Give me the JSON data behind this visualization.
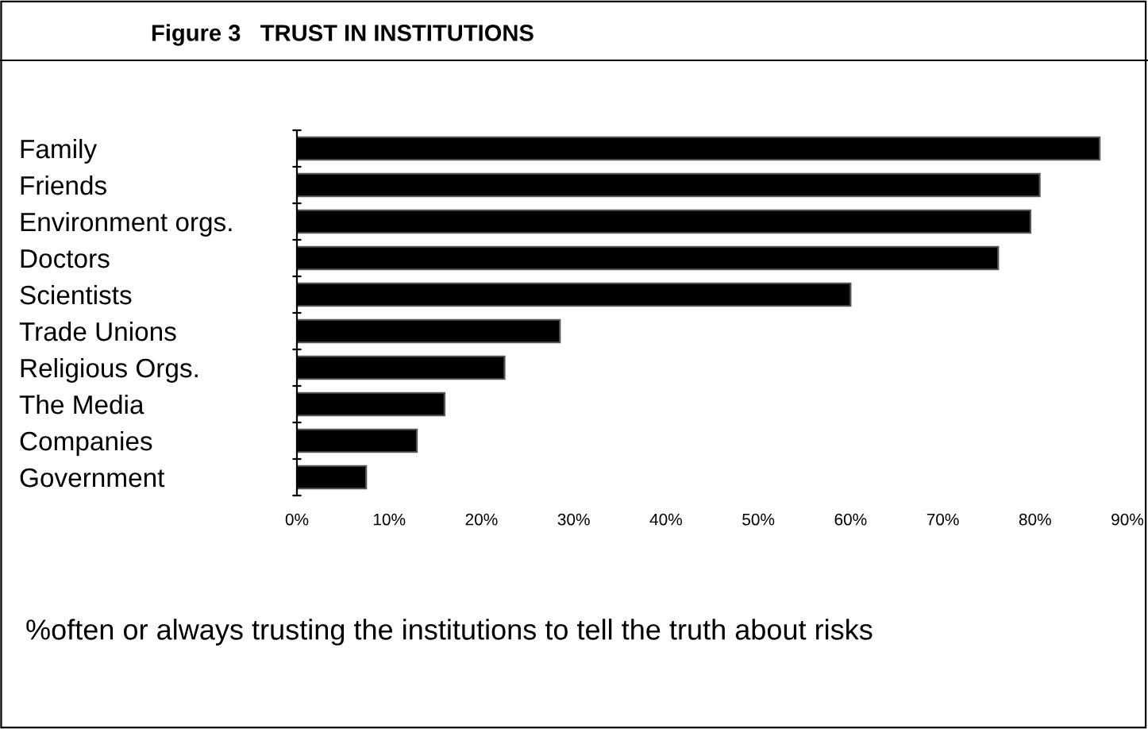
{
  "chart_data": {
    "type": "bar",
    "orientation": "horizontal",
    "title": "Figure 3   TRUST IN INSTITUTIONS",
    "categories": [
      "Family",
      "Friends",
      "Environment orgs.",
      "Doctors",
      "Scientists",
      "Trade Unions",
      "Religious Orgs.",
      "The Media",
      "Companies",
      "Government"
    ],
    "values": [
      87,
      80.5,
      79.5,
      76,
      60,
      28.5,
      22.5,
      16,
      13,
      7.5
    ],
    "color": "#000000",
    "xlim": [
      0,
      90
    ],
    "xticks": [
      {
        "value": 0,
        "label": "0%"
      },
      {
        "value": 10,
        "label": "10%"
      },
      {
        "value": 20,
        "label": "20%"
      },
      {
        "value": 30,
        "label": "30%"
      },
      {
        "value": 40,
        "label": "40%"
      },
      {
        "value": 50,
        "label": "50%"
      },
      {
        "value": 60,
        "label": "60%"
      },
      {
        "value": 70,
        "label": "70%"
      },
      {
        "value": 80,
        "label": "80%"
      },
      {
        "value": 90,
        "label": "90%"
      }
    ],
    "grid": false,
    "legend": false,
    "annotations": [
      "%often or always trusting the institutions to tell the truth about risks"
    ]
  }
}
